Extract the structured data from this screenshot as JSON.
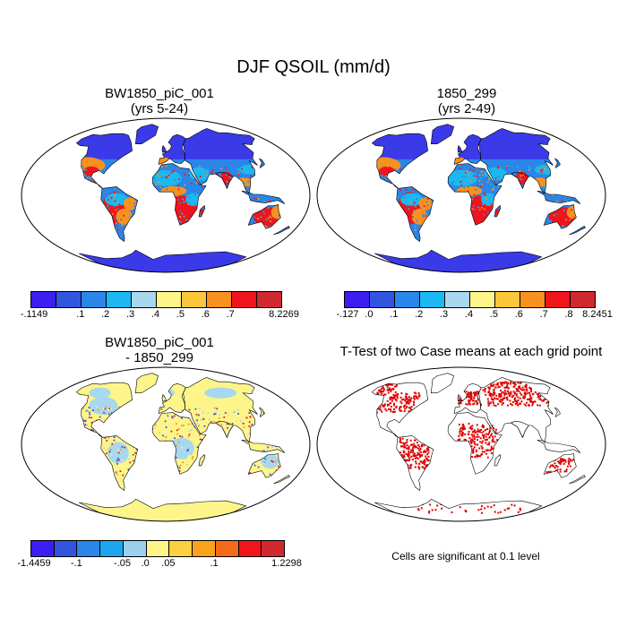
{
  "title": "DJF QSOIL (mm/d)",
  "panels": {
    "top_left": {
      "title_line1": "BW1850_piC_001",
      "title_line2": "(yrs 5-24)"
    },
    "top_right": {
      "title_line1": "1850_299",
      "title_line2": "(yrs 2-49)"
    },
    "bottom_left": {
      "title_line1": "BW1850_piC_001",
      "title_line2": "- 1850_299"
    },
    "bottom_right": {
      "title": "T-Test of two Case means at each grid point",
      "note": "Cells are significant at 0.1 level"
    }
  },
  "colorbars": {
    "top_left": {
      "colors": [
        "#3b1ef0",
        "#3255e0",
        "#2a86e8",
        "#1cb8f0",
        "#a8d8ee",
        "#fdf58a",
        "#fcc63a",
        "#f99120",
        "#f0141c",
        "#d0282e"
      ],
      "labels": [
        "-.1149",
        ".1",
        ".2",
        ".3",
        ".4",
        ".5",
        ".6",
        ".7",
        "8.2269"
      ]
    },
    "top_right": {
      "colors": [
        "#3b1ef0",
        "#3255e0",
        "#2a86e8",
        "#1cb8f0",
        "#a8d8ee",
        "#fdf58a",
        "#fcc63a",
        "#f99120",
        "#f0141c",
        "#d0282e"
      ],
      "labels": [
        "-.127",
        ".0",
        ".1",
        ".2",
        ".3",
        ".4",
        ".5",
        ".6",
        ".7",
        ".8",
        "8.2451"
      ]
    },
    "bottom_left": {
      "colors": [
        "#3b1ef0",
        "#3255e0",
        "#2a86e8",
        "#1ba6ee",
        "#9ad0ee",
        "#fdf58a",
        "#fcd040",
        "#f9a21e",
        "#f56a18",
        "#f0141c",
        "#d0282e"
      ],
      "labels": [
        "-1.4459",
        "-.1",
        "-.05",
        ".0",
        ".05",
        ".1",
        "1.2298"
      ]
    }
  },
  "map_colors": {
    "ocean": "#ffffff",
    "coast": "#000000",
    "high_lat": "#3b3ae8",
    "mid_low": "#2a86e8",
    "moist": "#1cb8f0",
    "dry": "#f0141c",
    "semi_dry": "#f99120",
    "diff_neutral": "#fdf58a",
    "diff_pos": "#a8d8ee",
    "diff_neg": "#3255e0",
    "sig": "#e00000"
  }
}
